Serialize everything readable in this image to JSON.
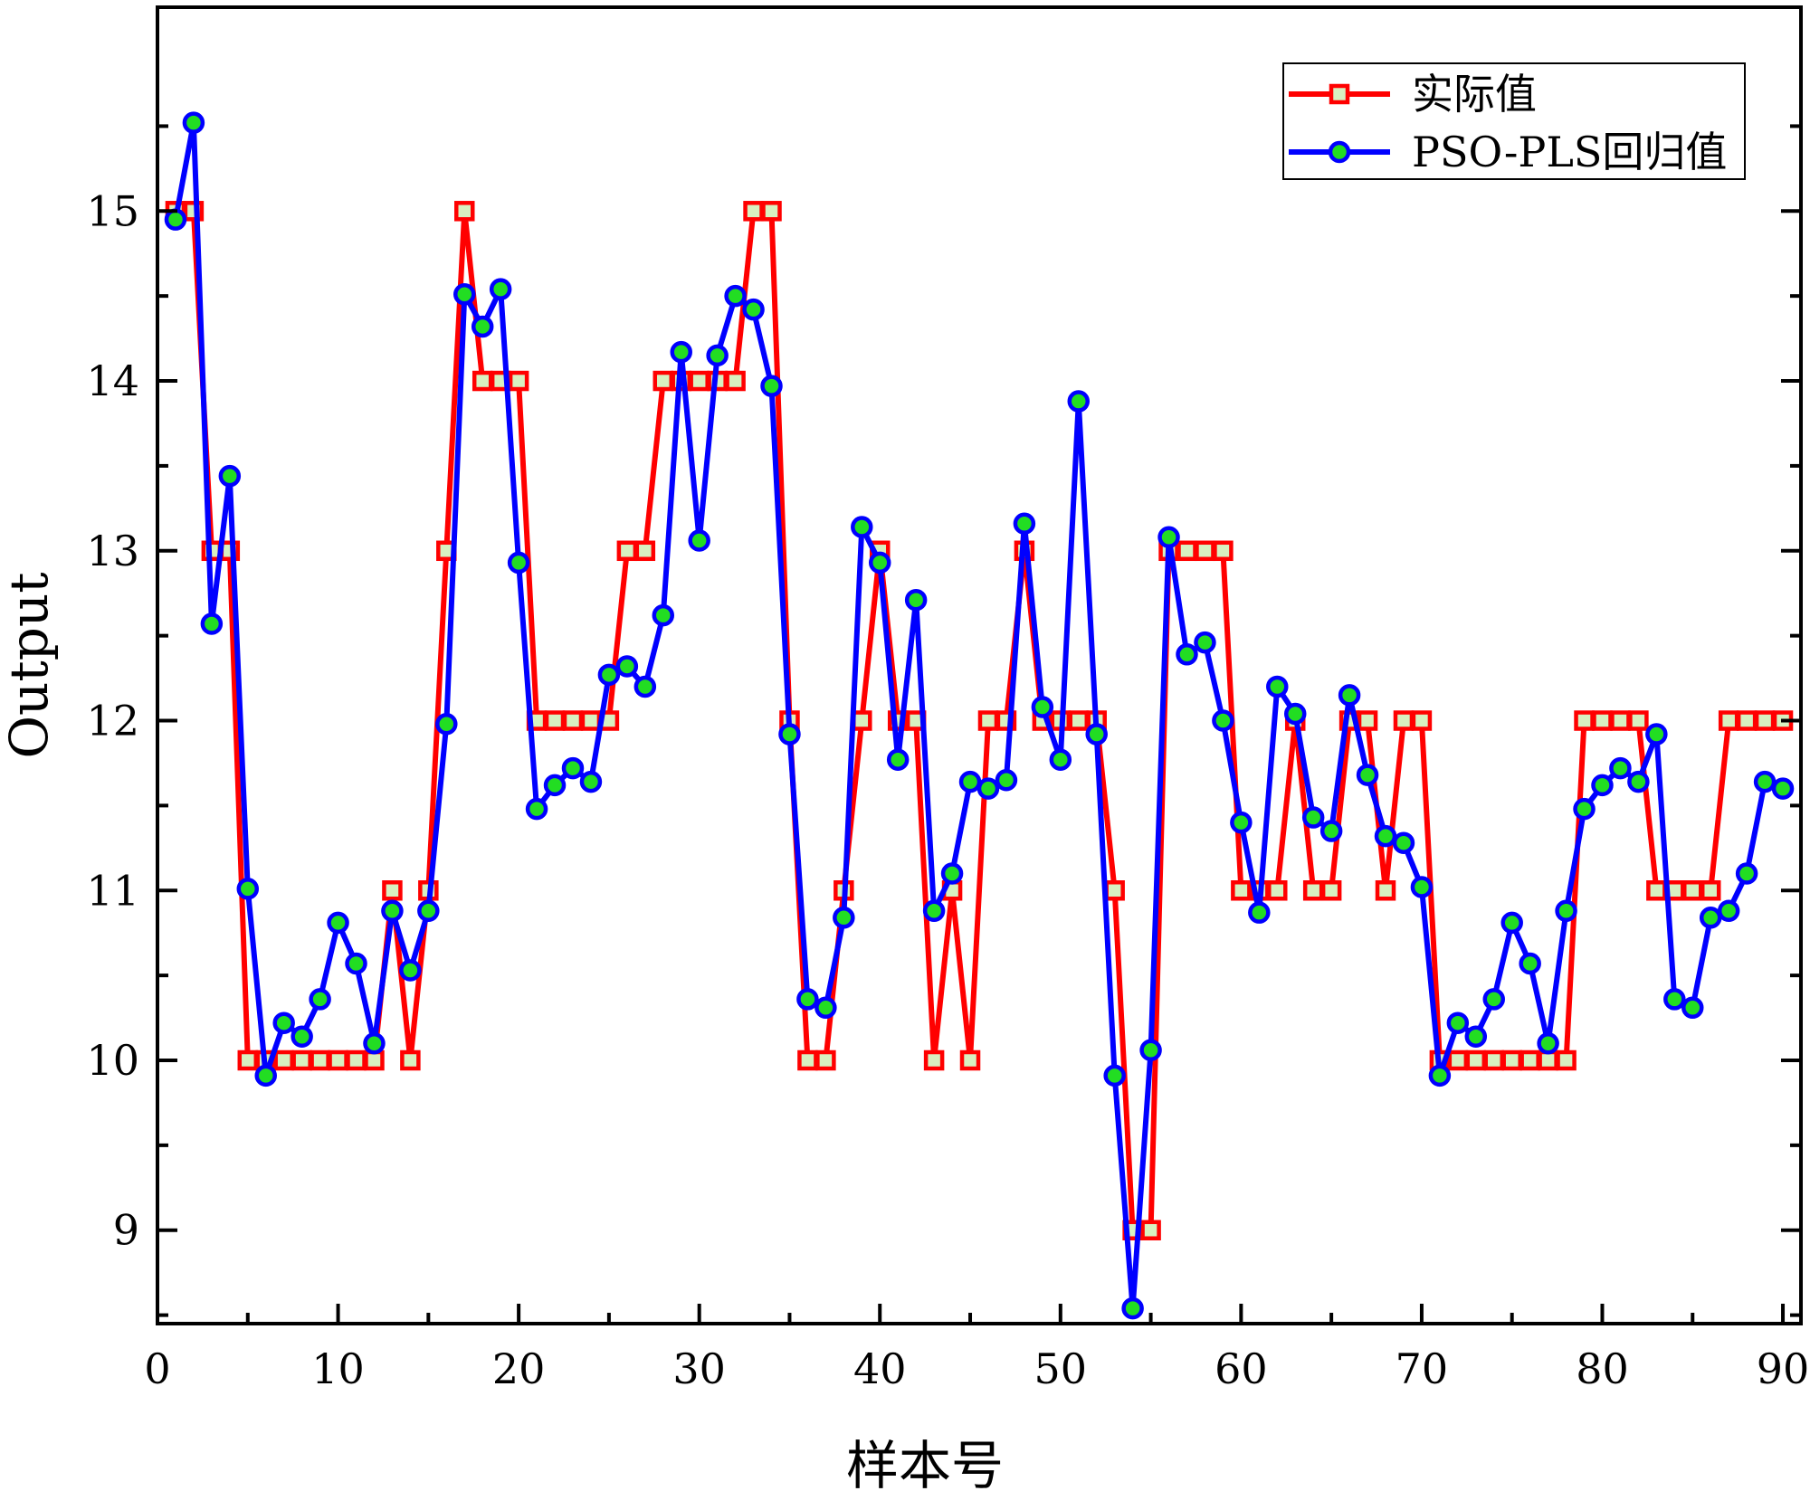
{
  "chart_data": {
    "type": "line",
    "title": "",
    "xlabel": "样本号",
    "ylabel": "Output",
    "xlim": [
      0,
      91
    ],
    "ylim": [
      8.45,
      16.2
    ],
    "xticks": [
      0,
      10,
      20,
      30,
      40,
      50,
      60,
      70,
      80,
      90
    ],
    "yticks": [
      9,
      10,
      11,
      12,
      13,
      14,
      15
    ],
    "xtick_labels": [
      "0",
      "10",
      "20",
      "30",
      "40",
      "50",
      "60",
      "70",
      "80",
      "90"
    ],
    "ytick_labels": [
      "9",
      "10",
      "11",
      "12",
      "13",
      "14",
      "15"
    ],
    "grid": false,
    "legend_position": "top-right",
    "x": [
      1,
      2,
      3,
      4,
      5,
      6,
      7,
      8,
      9,
      10,
      11,
      12,
      13,
      14,
      15,
      16,
      17,
      18,
      19,
      20,
      21,
      22,
      23,
      24,
      25,
      26,
      27,
      28,
      29,
      30,
      31,
      32,
      33,
      34,
      35,
      36,
      37,
      38,
      39,
      40,
      41,
      42,
      43,
      44,
      45,
      46,
      47,
      48,
      49,
      50,
      51,
      52,
      53,
      54,
      55,
      56,
      57,
      58,
      59,
      60,
      61,
      62,
      63,
      64,
      65,
      66,
      67,
      68,
      69,
      70,
      71,
      72,
      73,
      74,
      75,
      76,
      77,
      78,
      79,
      80,
      81,
      82,
      83,
      84,
      85,
      86,
      87,
      88,
      89,
      90
    ],
    "series": [
      {
        "name": "实际值",
        "color": "#ff0000",
        "marker": "square",
        "marker_fill": "#d8f0c0",
        "values": [
          15,
          15,
          13,
          13,
          10,
          10,
          10,
          10,
          10,
          10,
          10,
          10,
          11,
          10,
          11,
          13,
          15,
          14,
          14,
          14,
          12,
          12,
          12,
          12,
          12,
          13,
          13,
          14,
          14,
          14,
          14,
          14,
          15,
          15,
          12,
          10,
          10,
          11,
          12,
          13,
          12,
          12,
          10,
          11,
          10,
          12,
          12,
          13,
          12,
          12,
          12,
          12,
          11,
          9,
          9,
          13,
          13,
          13,
          13,
          11,
          11,
          11,
          12,
          11,
          11,
          12,
          12,
          11,
          12,
          12,
          10,
          10,
          10,
          10,
          10,
          10,
          10,
          10,
          12,
          12,
          12,
          12,
          11,
          11,
          11,
          11,
          12,
          12,
          12,
          12
        ]
      },
      {
        "name": "PSO-PLS回归值",
        "color": "#0000ff",
        "marker": "circle",
        "marker_fill": "#22dd22",
        "values": [
          14.95,
          15.52,
          12.57,
          13.44,
          11.01,
          9.91,
          10.22,
          10.14,
          10.36,
          10.81,
          10.57,
          10.1,
          10.88,
          10.53,
          10.88,
          11.98,
          14.51,
          14.32,
          14.54,
          12.93,
          11.48,
          11.62,
          11.72,
          11.64,
          12.27,
          12.32,
          12.2,
          12.62,
          14.17,
          13.06,
          14.15,
          14.5,
          14.42,
          13.97,
          11.92,
          10.36,
          10.31,
          10.84,
          13.14,
          12.93,
          11.77,
          12.71,
          10.88,
          11.1,
          11.64,
          11.6,
          11.65,
          13.16,
          12.08,
          11.77,
          13.88,
          11.92,
          9.91,
          8.54,
          10.06,
          13.08,
          12.39,
          12.46,
          12.0,
          11.4,
          10.87,
          12.2,
          12.04,
          11.43,
          11.35,
          12.15,
          11.68,
          11.32,
          11.28,
          11.02,
          9.91,
          10.22,
          10.14,
          10.36,
          10.81,
          10.57,
          10.1,
          10.88,
          11.48,
          11.62,
          11.72,
          11.64,
          11.92,
          10.36,
          10.31,
          10.84,
          10.88,
          11.1,
          11.64,
          11.6
        ]
      }
    ]
  }
}
